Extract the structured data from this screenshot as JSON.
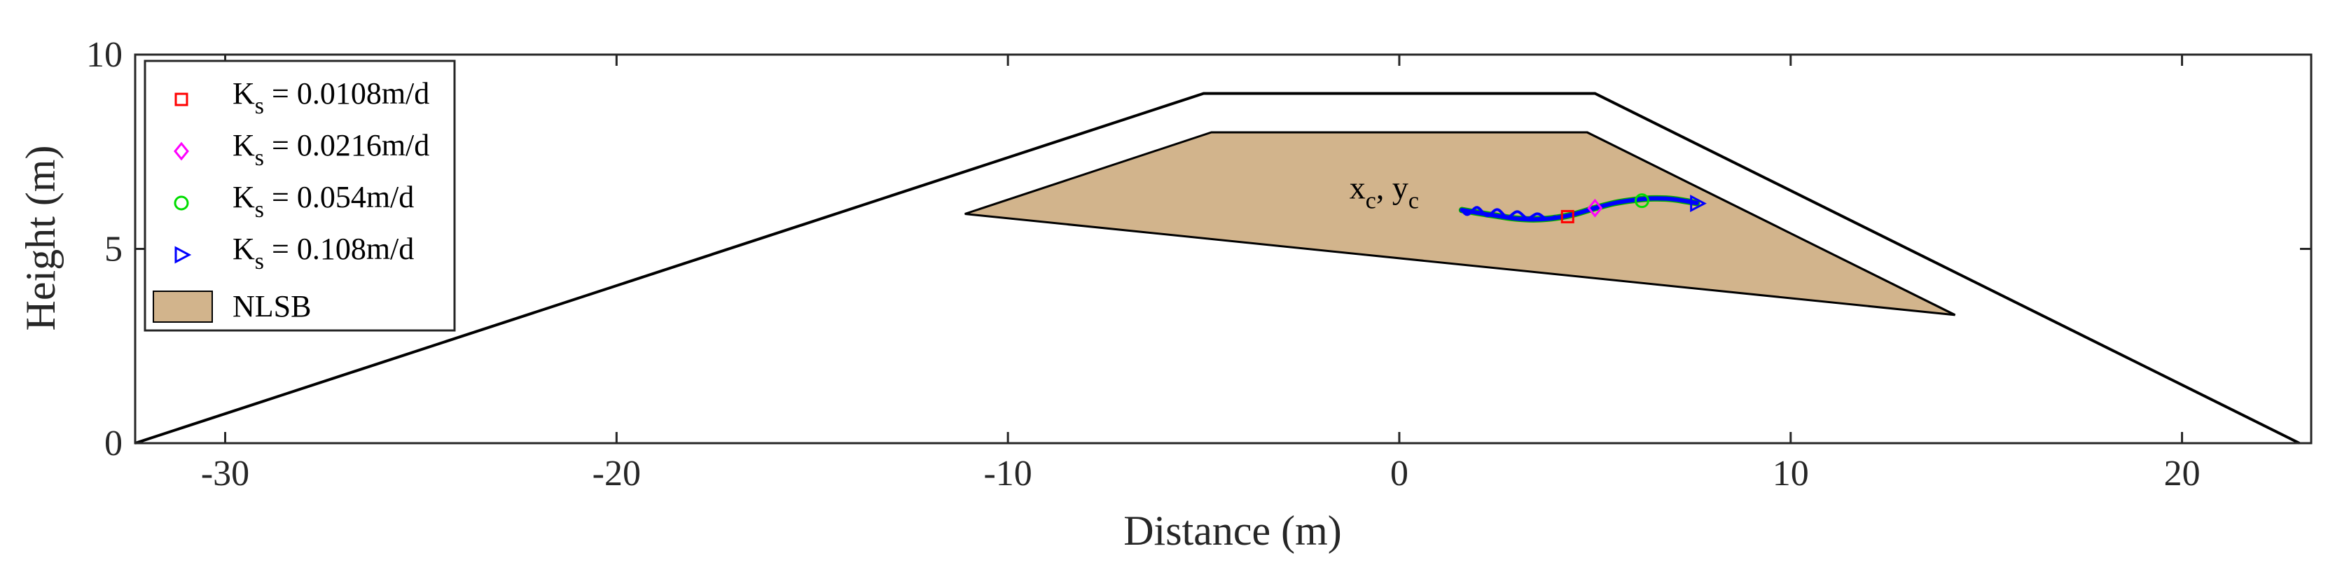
{
  "chart_data": {
    "type": "line",
    "xlabel": "Distance (m)",
    "ylabel": "Height (m)",
    "xlim": [
      -32.3,
      23.3
    ],
    "ylim": [
      0,
      10
    ],
    "xticks": [
      -30,
      -20,
      -10,
      0,
      10,
      20
    ],
    "yticks": [
      0,
      5,
      10
    ],
    "grid": false,
    "legend_position": "top-left",
    "embankment": {
      "outer_x": [
        -32.3,
        -5.0,
        5.0,
        23.0
      ],
      "outer_y": [
        0,
        9.0,
        9.0,
        0
      ],
      "inner_x": [
        -4.8,
        4.8,
        14.2
      ],
      "inner_y": [
        8.0,
        8.0,
        3.3
      ]
    },
    "nlsb": {
      "name": "NLSB",
      "color": "#d2b48c",
      "x": [
        -11.1,
        -4.8,
        4.8,
        14.2
      ],
      "y": [
        5.9,
        8.0,
        8.0,
        3.3
      ]
    },
    "trajectory": {
      "x": [
        1.6,
        2.0,
        2.5,
        3.0,
        3.5,
        4.0,
        4.5,
        5.0,
        5.5,
        6.0,
        6.5,
        7.0,
        7.6
      ],
      "y": [
        6.0,
        5.93,
        5.85,
        5.78,
        5.76,
        5.8,
        5.9,
        6.05,
        6.18,
        6.26,
        6.3,
        6.28,
        6.18
      ],
      "color": "#0000ff"
    },
    "series": [
      {
        "name": "Kₛ = 0.0108m/d",
        "label_main": "K",
        "label_sub": "s",
        "label_rest": " = 0.0108m/d",
        "marker": "square",
        "color": "#ff0000",
        "x": [
          4.3
        ],
        "y": [
          5.83
        ]
      },
      {
        "name": "Kₛ = 0.0216m/d",
        "label_main": "K",
        "label_sub": "s",
        "label_rest": " = 0.0216m/d",
        "marker": "diamond",
        "color": "#ff00ff",
        "x": [
          5.0
        ],
        "y": [
          6.05
        ]
      },
      {
        "name": "Kₛ = 0.054m/d",
        "label_main": "K",
        "label_sub": "s",
        "label_rest": " = 0.054m/d",
        "marker": "circle",
        "color": "#00dd00",
        "x": [
          6.2
        ],
        "y": [
          6.24
        ]
      },
      {
        "name": "Kₛ = 0.108m/d",
        "label_main": "K",
        "label_sub": "s",
        "label_rest": " = 0.108m/d",
        "marker": "triangle-right",
        "color": "#0000ff",
        "x": [
          7.6
        ],
        "y": [
          6.17
        ]
      }
    ],
    "annotation": {
      "main1": "x",
      "sub1": "c",
      "sep": ", ",
      "main2": "y",
      "sub2": "c",
      "x": 0.5,
      "y": 6.3
    }
  }
}
